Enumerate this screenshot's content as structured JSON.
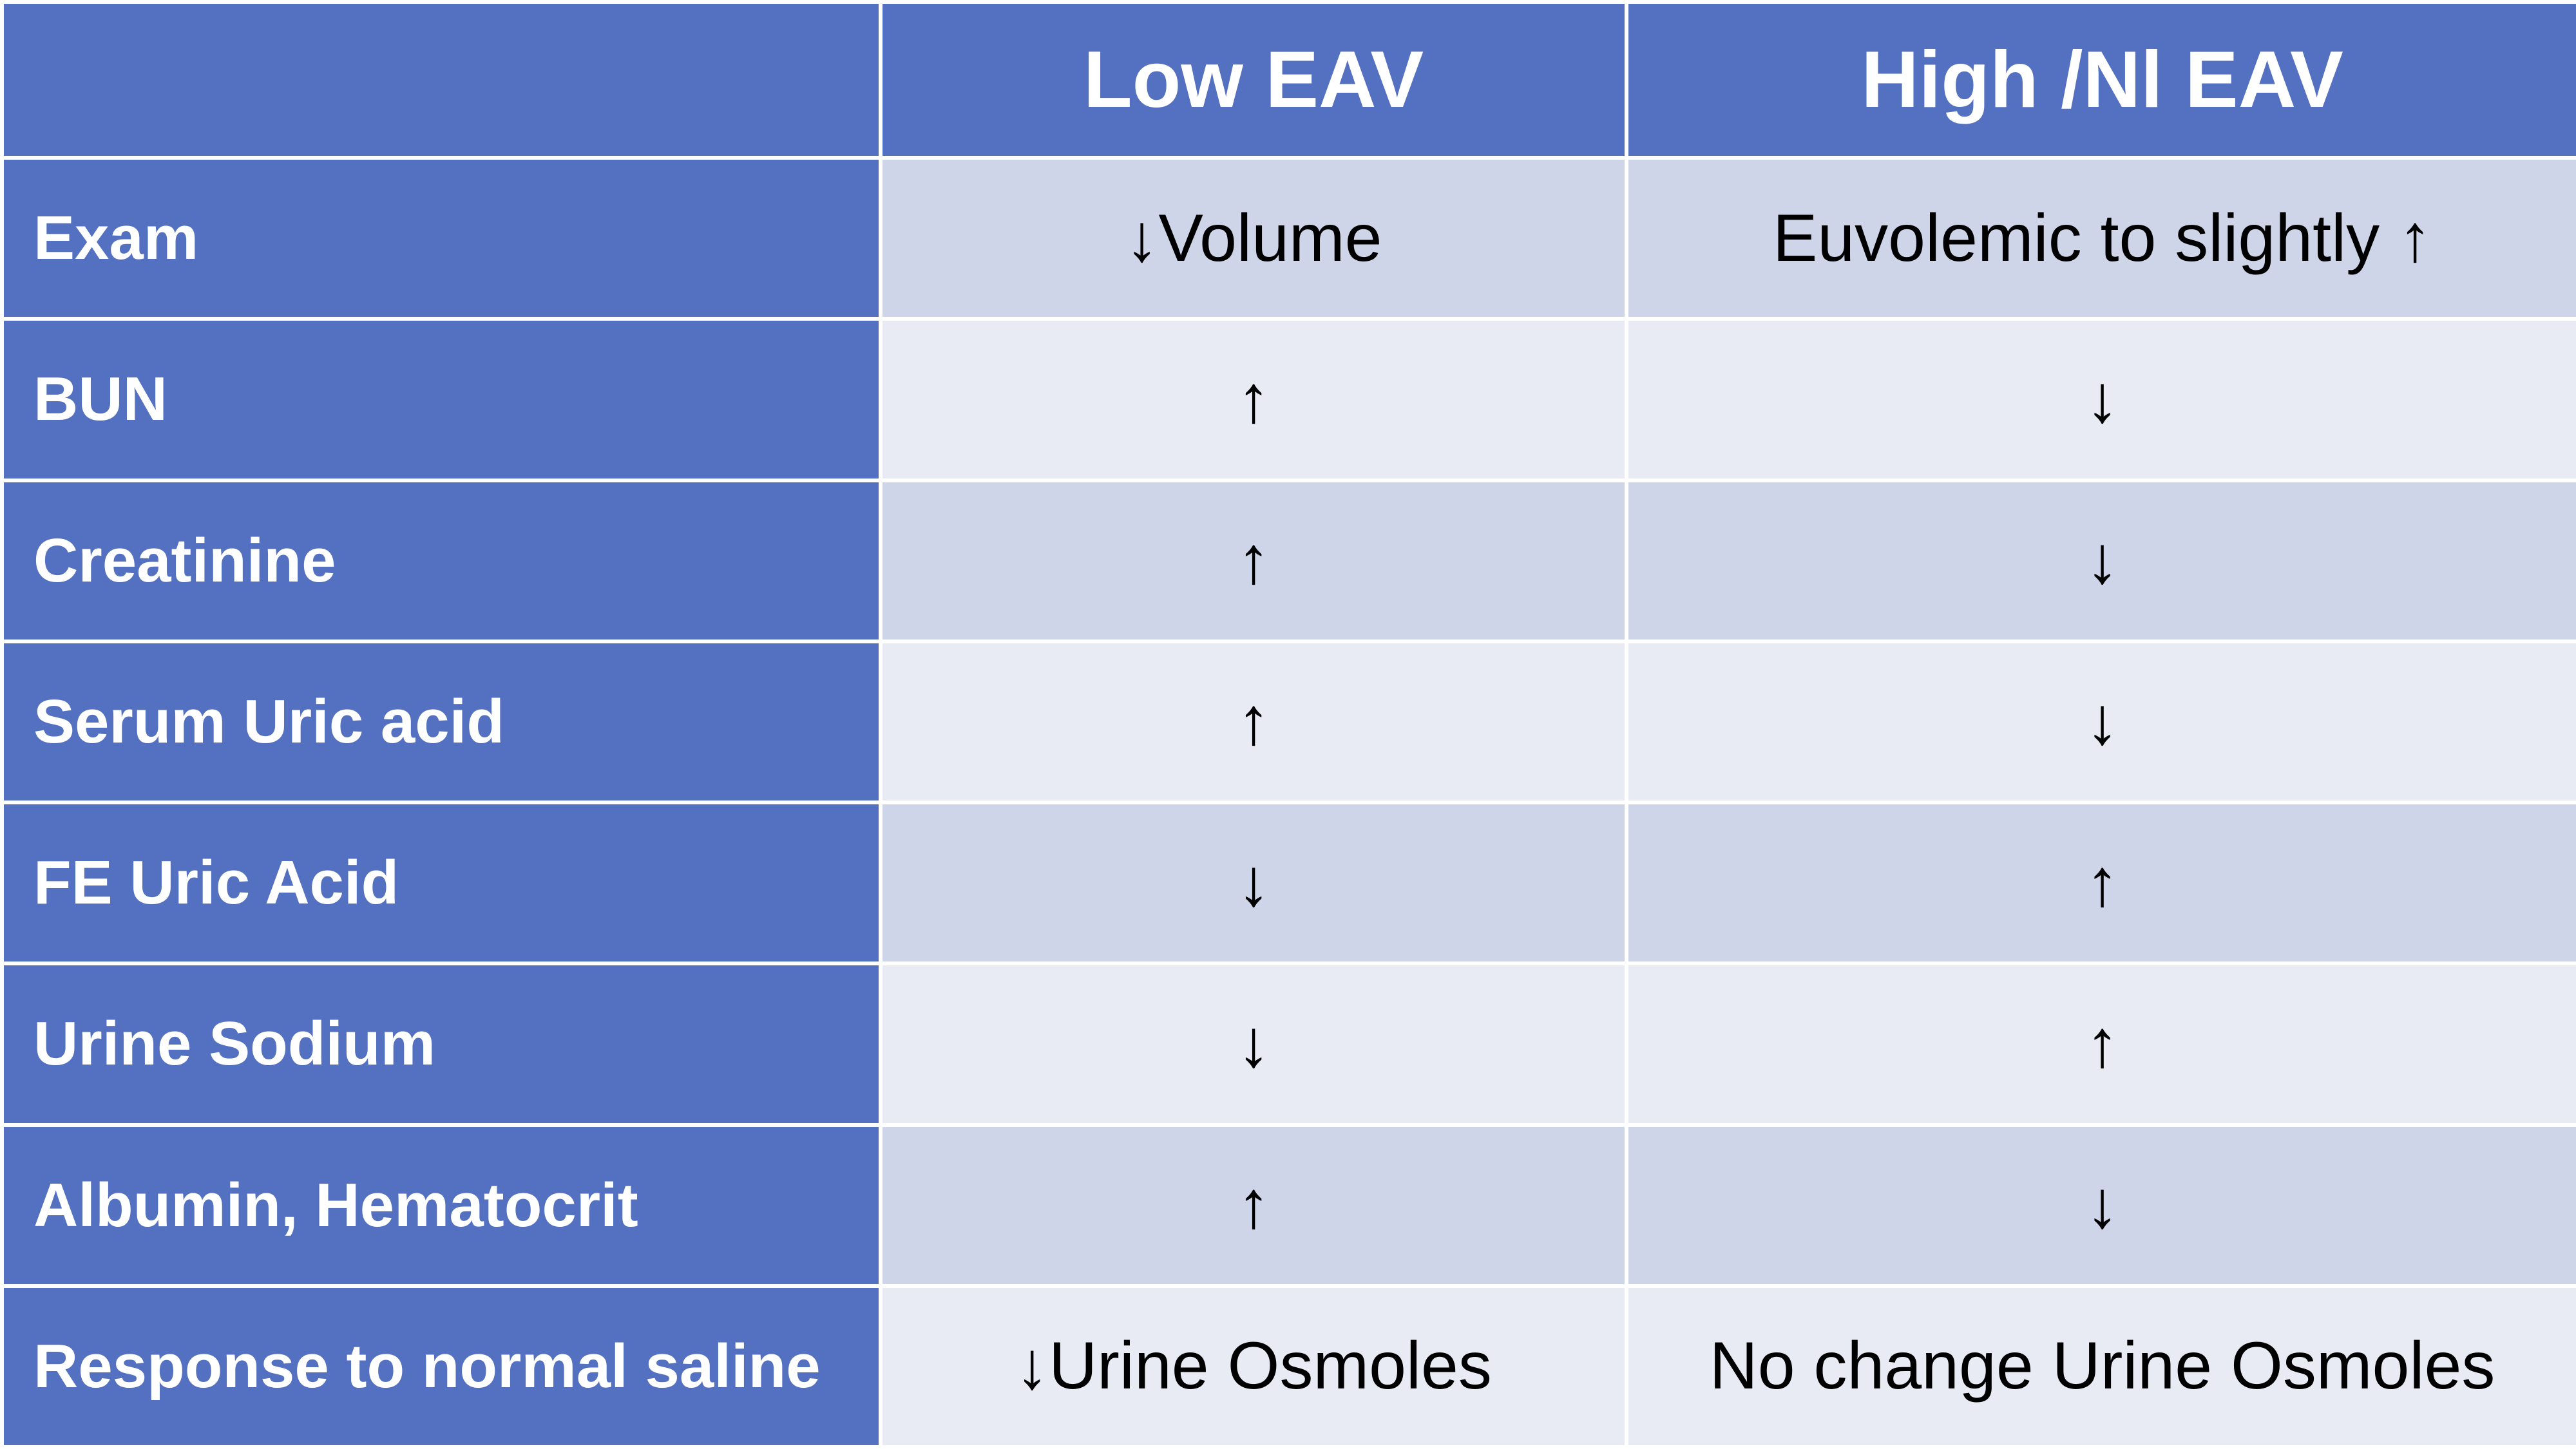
{
  "table": {
    "header": [
      "Low EAV",
      "High /Nl EAV"
    ],
    "rows": [
      [
        "Exam",
        "↓Volume",
        "Euvolemic to slightly ↑"
      ],
      [
        "BUN",
        "↑",
        "↓"
      ],
      [
        "Creatinine",
        "↑",
        "↓"
      ],
      [
        "Serum Uric acid",
        "↑",
        "↓"
      ],
      [
        "FE Uric Acid",
        "↓",
        "↑"
      ],
      [
        "Urine Sodium",
        "↓",
        "↑"
      ],
      [
        "Albumin, Hematocrit",
        "↑",
        "↓"
      ],
      [
        "Response to normal saline",
        "↓Urine Osmoles",
        "No change Urine Osmoles"
      ]
    ]
  }
}
